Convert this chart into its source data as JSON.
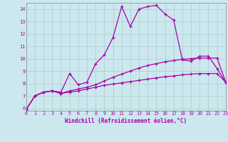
{
  "xlabel": "Windchill (Refroidissement éolien,°C)",
  "background_color": "#cce8ee",
  "line_color": "#aa00aa",
  "grid_color": "#aacccc",
  "xlim": [
    0,
    23
  ],
  "ylim": [
    5.8,
    14.5
  ],
  "xticks": [
    0,
    1,
    2,
    3,
    4,
    5,
    6,
    7,
    8,
    9,
    10,
    11,
    12,
    13,
    14,
    15,
    16,
    17,
    18,
    19,
    20,
    21,
    22,
    23
  ],
  "yticks": [
    6,
    7,
    8,
    9,
    10,
    11,
    12,
    13,
    14
  ],
  "line1_x": [
    0,
    1,
    2,
    3,
    4,
    5,
    6,
    7,
    8,
    9,
    10,
    11,
    12,
    13,
    14,
    15,
    16,
    17,
    18,
    19,
    20,
    21,
    22,
    23
  ],
  "line1_y": [
    5.9,
    7.0,
    7.3,
    7.4,
    7.3,
    8.8,
    7.9,
    8.1,
    9.6,
    10.3,
    11.7,
    14.2,
    12.6,
    14.0,
    14.2,
    14.3,
    13.6,
    13.1,
    9.9,
    9.8,
    10.2,
    10.2,
    9.2,
    8.1
  ],
  "line2_x": [
    0,
    1,
    2,
    3,
    4,
    5,
    6,
    7,
    8,
    9,
    10,
    11,
    12,
    13,
    14,
    15,
    16,
    17,
    18,
    19,
    20,
    21,
    22,
    23
  ],
  "line2_y": [
    5.9,
    7.0,
    7.3,
    7.4,
    7.2,
    7.3,
    7.4,
    7.55,
    7.7,
    7.85,
    7.95,
    8.05,
    8.15,
    8.25,
    8.35,
    8.45,
    8.55,
    8.6,
    8.7,
    8.75,
    8.8,
    8.8,
    8.8,
    8.1
  ],
  "line3_x": [
    0,
    1,
    2,
    3,
    4,
    5,
    6,
    7,
    8,
    9,
    10,
    11,
    12,
    13,
    14,
    15,
    16,
    17,
    18,
    19,
    20,
    21,
    22,
    23
  ],
  "line3_y": [
    5.9,
    7.0,
    7.3,
    7.4,
    7.2,
    7.4,
    7.55,
    7.7,
    7.9,
    8.2,
    8.5,
    8.75,
    9.0,
    9.25,
    9.45,
    9.6,
    9.75,
    9.85,
    9.95,
    10.0,
    10.05,
    10.05,
    10.05,
    8.1
  ]
}
